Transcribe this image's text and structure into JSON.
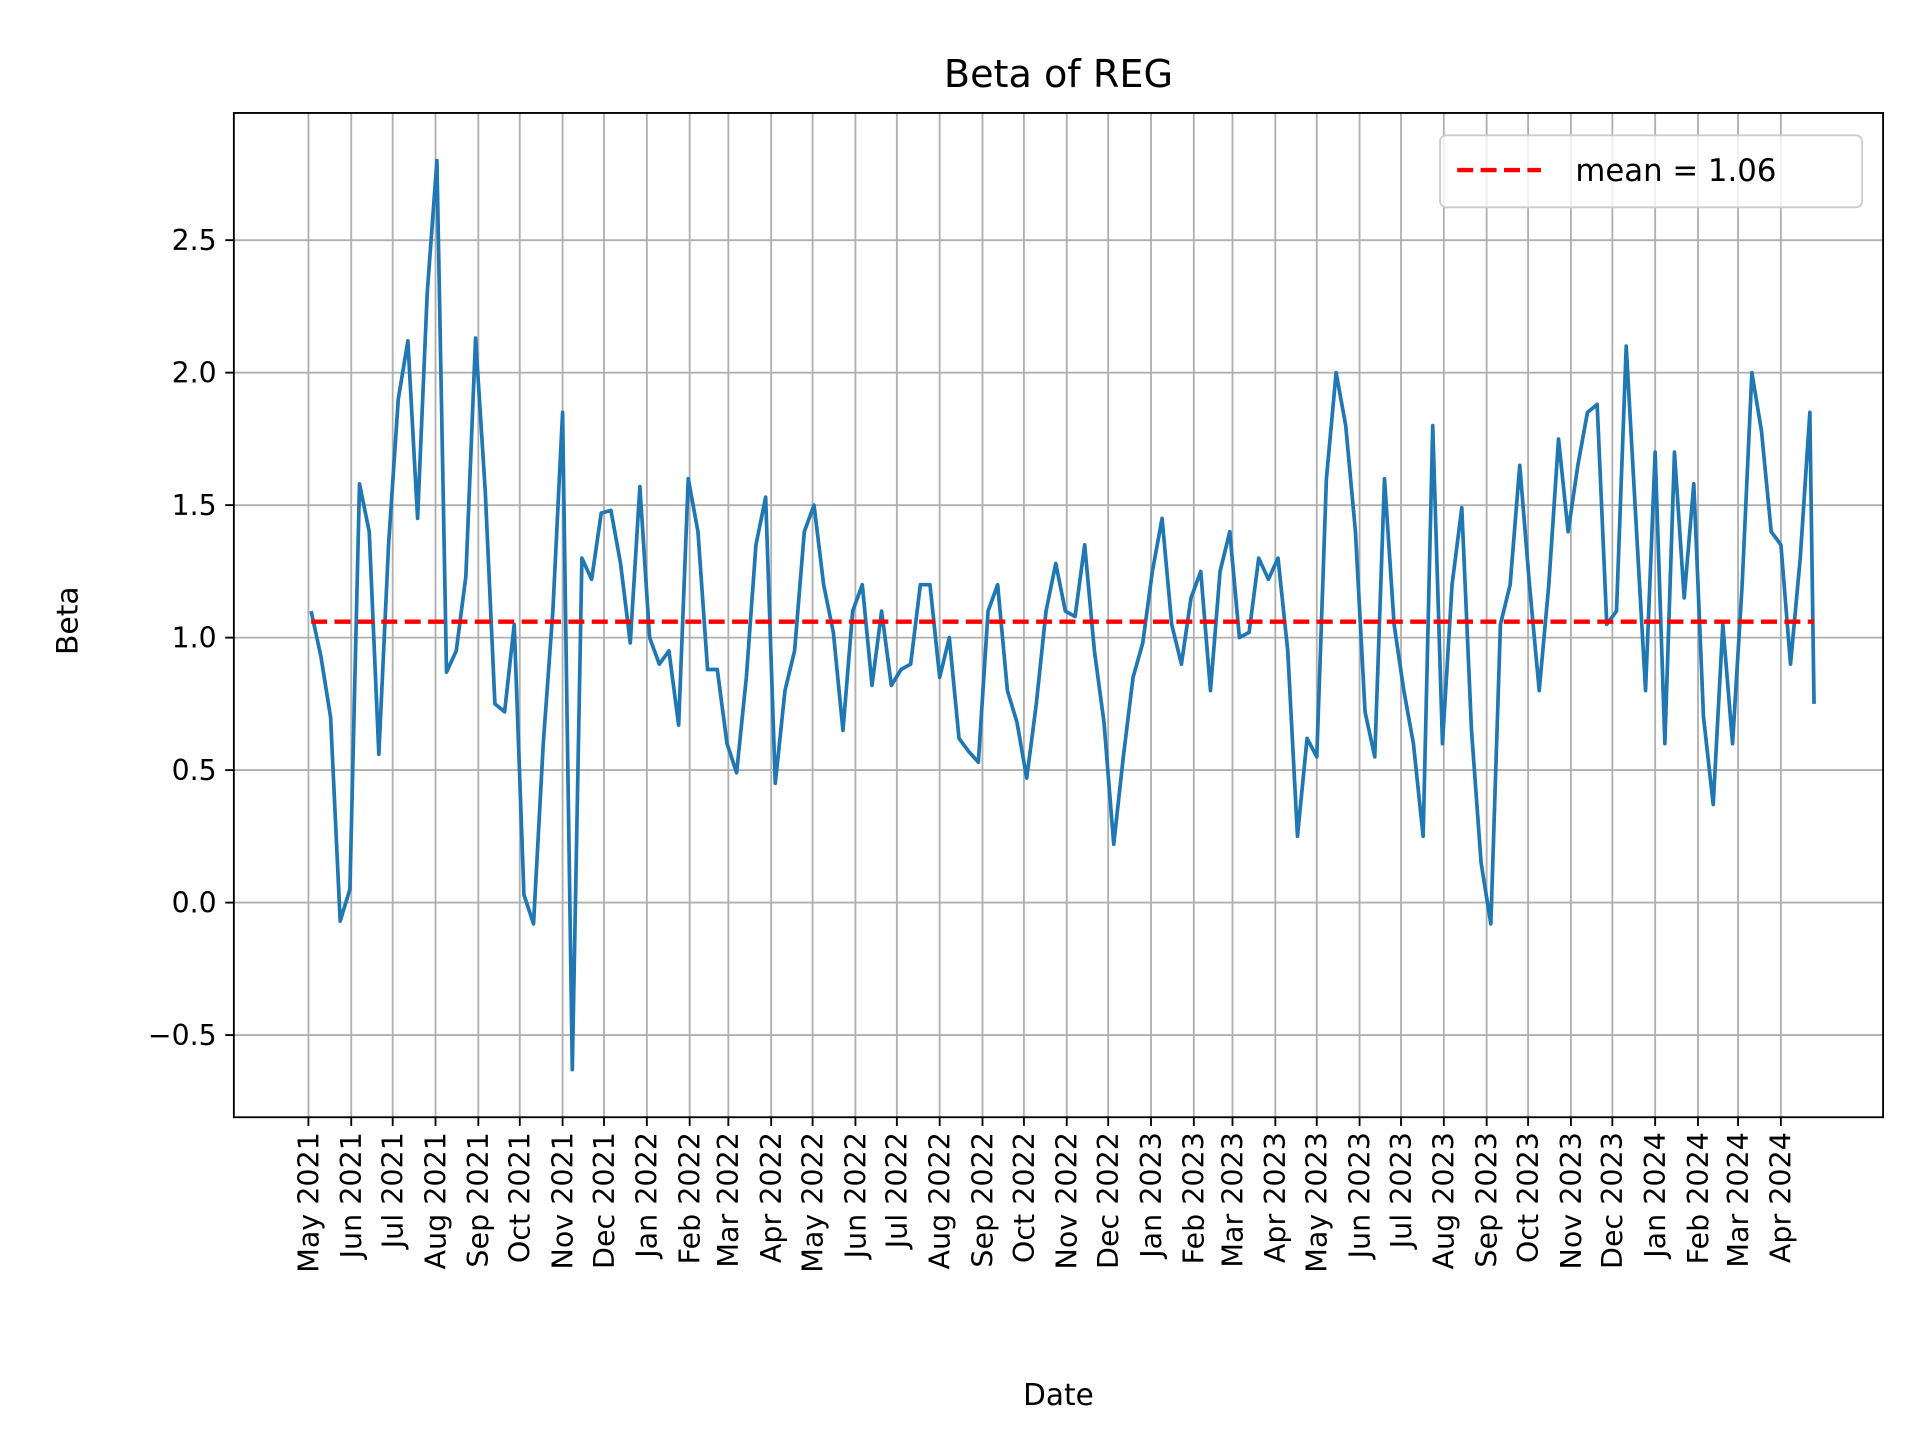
{
  "chart_data": {
    "type": "line",
    "title": "Beta of REG",
    "xlabel": "Date",
    "ylabel": "Beta",
    "xlim": [
      "2021-03-08",
      "2024-06-14"
    ],
    "ylim": [
      -0.81,
      2.98
    ],
    "grid": true,
    "legend_position": "top-right",
    "y_ticks": [
      -0.5,
      0.0,
      0.5,
      1.0,
      1.5,
      2.0,
      2.5
    ],
    "y_tick_labels": [
      "−0.5",
      "0.0",
      "0.5",
      "1.0",
      "1.5",
      "2.0",
      "2.5"
    ],
    "x_ticks": [
      "2021-05-01",
      "2021-06-01",
      "2021-07-01",
      "2021-08-01",
      "2021-09-01",
      "2021-10-01",
      "2021-11-01",
      "2021-12-01",
      "2022-01-01",
      "2022-02-01",
      "2022-03-01",
      "2022-04-01",
      "2022-05-01",
      "2022-06-01",
      "2022-07-01",
      "2022-08-01",
      "2022-09-01",
      "2022-10-01",
      "2022-11-01",
      "2022-12-01",
      "2023-01-01",
      "2023-02-01",
      "2023-03-01",
      "2023-04-01",
      "2023-05-01",
      "2023-06-01",
      "2023-07-01",
      "2023-08-01",
      "2023-09-01",
      "2023-10-01",
      "2023-11-01",
      "2023-12-01",
      "2024-01-01",
      "2024-02-01",
      "2024-03-01",
      "2024-04-01"
    ],
    "x_tick_labels": [
      "May 2021",
      "Jun 2021",
      "Jul 2021",
      "Aug 2021",
      "Sep 2021",
      "Oct 2021",
      "Nov 2021",
      "Dec 2021",
      "Jan 2022",
      "Feb 2022",
      "Mar 2022",
      "Apr 2022",
      "May 2022",
      "Jun 2022",
      "Jul 2022",
      "Aug 2022",
      "Sep 2022",
      "Oct 2022",
      "Nov 2022",
      "Dec 2022",
      "Jan 2023",
      "Feb 2023",
      "Mar 2023",
      "Apr 2023",
      "May 2023",
      "Jun 2023",
      "Jul 2023",
      "Aug 2023",
      "Sep 2023",
      "Oct 2023",
      "Nov 2023",
      "Dec 2023",
      "Jan 2024",
      "Feb 2024",
      "Mar 2024",
      "Apr 2024"
    ],
    "series": [
      {
        "color": "#1f77b4",
        "x": [
          "2021-05-03",
          "2021-05-10",
          "2021-05-17",
          "2021-05-24",
          "2021-05-31",
          "2021-06-07",
          "2021-06-14",
          "2021-06-21",
          "2021-06-28",
          "2021-07-05",
          "2021-07-12",
          "2021-07-19",
          "2021-07-26",
          "2021-08-02",
          "2021-08-09",
          "2021-08-16",
          "2021-08-23",
          "2021-08-30",
          "2021-09-06",
          "2021-09-13",
          "2021-09-20",
          "2021-09-27",
          "2021-10-04",
          "2021-10-11",
          "2021-10-18",
          "2021-10-25",
          "2021-11-01",
          "2021-11-08",
          "2021-11-15",
          "2021-11-22",
          "2021-11-29",
          "2021-12-06",
          "2021-12-13",
          "2021-12-20",
          "2021-12-27",
          "2022-01-03",
          "2022-01-10",
          "2022-01-17",
          "2022-01-24",
          "2022-01-31",
          "2022-02-07",
          "2022-02-14",
          "2022-02-21",
          "2022-02-28",
          "2022-03-07",
          "2022-03-14",
          "2022-03-21",
          "2022-03-28",
          "2022-04-04",
          "2022-04-11",
          "2022-04-18",
          "2022-04-25",
          "2022-05-02",
          "2022-05-09",
          "2022-05-16",
          "2022-05-23",
          "2022-05-30",
          "2022-06-06",
          "2022-06-13",
          "2022-06-20",
          "2022-06-27",
          "2022-07-04",
          "2022-07-11",
          "2022-07-18",
          "2022-07-25",
          "2022-08-01",
          "2022-08-08",
          "2022-08-15",
          "2022-08-22",
          "2022-08-29",
          "2022-09-05",
          "2022-09-12",
          "2022-09-19",
          "2022-09-26",
          "2022-10-03",
          "2022-10-10",
          "2022-10-17",
          "2022-10-24",
          "2022-10-31",
          "2022-11-07",
          "2022-11-14",
          "2022-11-21",
          "2022-11-28",
          "2022-12-05",
          "2022-12-12",
          "2022-12-19",
          "2022-12-26",
          "2023-01-02",
          "2023-01-09",
          "2023-01-16",
          "2023-01-23",
          "2023-01-30",
          "2023-02-06",
          "2023-02-13",
          "2023-02-20",
          "2023-02-27",
          "2023-03-06",
          "2023-03-13",
          "2023-03-20",
          "2023-03-27",
          "2023-04-03",
          "2023-04-10",
          "2023-04-17",
          "2023-04-24",
          "2023-05-01",
          "2023-05-08",
          "2023-05-15",
          "2023-05-22",
          "2023-05-29",
          "2023-06-05",
          "2023-06-12",
          "2023-06-19",
          "2023-06-26",
          "2023-07-03",
          "2023-07-10",
          "2023-07-17",
          "2023-07-24",
          "2023-07-31",
          "2023-08-07",
          "2023-08-14",
          "2023-08-21",
          "2023-08-28",
          "2023-09-04",
          "2023-09-11",
          "2023-09-18",
          "2023-09-25",
          "2023-10-02",
          "2023-10-09",
          "2023-10-16",
          "2023-10-23",
          "2023-10-30",
          "2023-11-06",
          "2023-11-13",
          "2023-11-20",
          "2023-11-27",
          "2023-12-04",
          "2023-12-11",
          "2023-12-18",
          "2023-12-25",
          "2024-01-01",
          "2024-01-08",
          "2024-01-15",
          "2024-01-22",
          "2024-01-29",
          "2024-02-05",
          "2024-02-12",
          "2024-02-19",
          "2024-02-26",
          "2024-03-04",
          "2024-03-11",
          "2024-03-18",
          "2024-03-25",
          "2024-04-01",
          "2024-04-08",
          "2024-04-15",
          "2024-04-22",
          "2024-04-25"
        ],
        "values": [
          1.1,
          0.93,
          0.7,
          -0.07,
          0.05,
          1.58,
          1.4,
          0.56,
          1.35,
          1.9,
          2.12,
          1.45,
          2.3,
          2.8,
          0.87,
          0.95,
          1.23,
          2.13,
          1.55,
          0.75,
          0.72,
          1.05,
          0.03,
          -0.08,
          0.6,
          1.1,
          1.85,
          -0.63,
          1.3,
          1.22,
          1.47,
          1.48,
          1.28,
          0.98,
          1.57,
          1.0,
          0.9,
          0.95,
          0.67,
          1.6,
          1.4,
          0.88,
          0.88,
          0.6,
          0.49,
          0.85,
          1.35,
          1.53,
          0.45,
          0.8,
          0.95,
          1.4,
          1.5,
          1.2,
          1.02,
          0.65,
          1.1,
          1.2,
          0.82,
          1.1,
          0.82,
          0.88,
          0.9,
          1.2,
          1.2,
          0.85,
          1.0,
          0.62,
          0.57,
          0.53,
          1.1,
          1.2,
          0.8,
          0.68,
          0.47,
          0.75,
          1.1,
          1.28,
          1.1,
          1.08,
          1.35,
          0.95,
          0.68,
          0.22,
          0.55,
          0.85,
          0.98,
          1.25,
          1.45,
          1.05,
          0.9,
          1.15,
          1.25,
          0.8,
          1.25,
          1.4,
          1.0,
          1.02,
          1.3,
          1.22,
          1.3,
          0.95,
          0.25,
          0.62,
          0.55,
          1.6,
          2.0,
          1.8,
          1.4,
          0.72,
          0.55,
          1.6,
          1.05,
          0.8,
          0.6,
          0.25,
          1.8,
          0.6,
          1.2,
          1.49,
          0.65,
          0.15,
          -0.08,
          1.05,
          1.2,
          1.65,
          1.2,
          0.8,
          1.2,
          1.75,
          1.4,
          1.65,
          1.85,
          1.88,
          1.05,
          1.1,
          2.1,
          1.45,
          0.8,
          1.7,
          0.6,
          1.7,
          1.15,
          1.58,
          0.7,
          0.37,
          1.05,
          0.6,
          1.2,
          2.0,
          1.78,
          1.4,
          1.35,
          0.9,
          1.3,
          1.85,
          0.75
        ]
      },
      {
        "name": "mean = 1.06",
        "color": "#ff0000",
        "style": "dashed",
        "x": [
          "2021-05-03",
          "2024-04-25"
        ],
        "values": [
          1.06,
          1.06
        ]
      }
    ],
    "legend": [
      "mean = 1.06"
    ]
  }
}
